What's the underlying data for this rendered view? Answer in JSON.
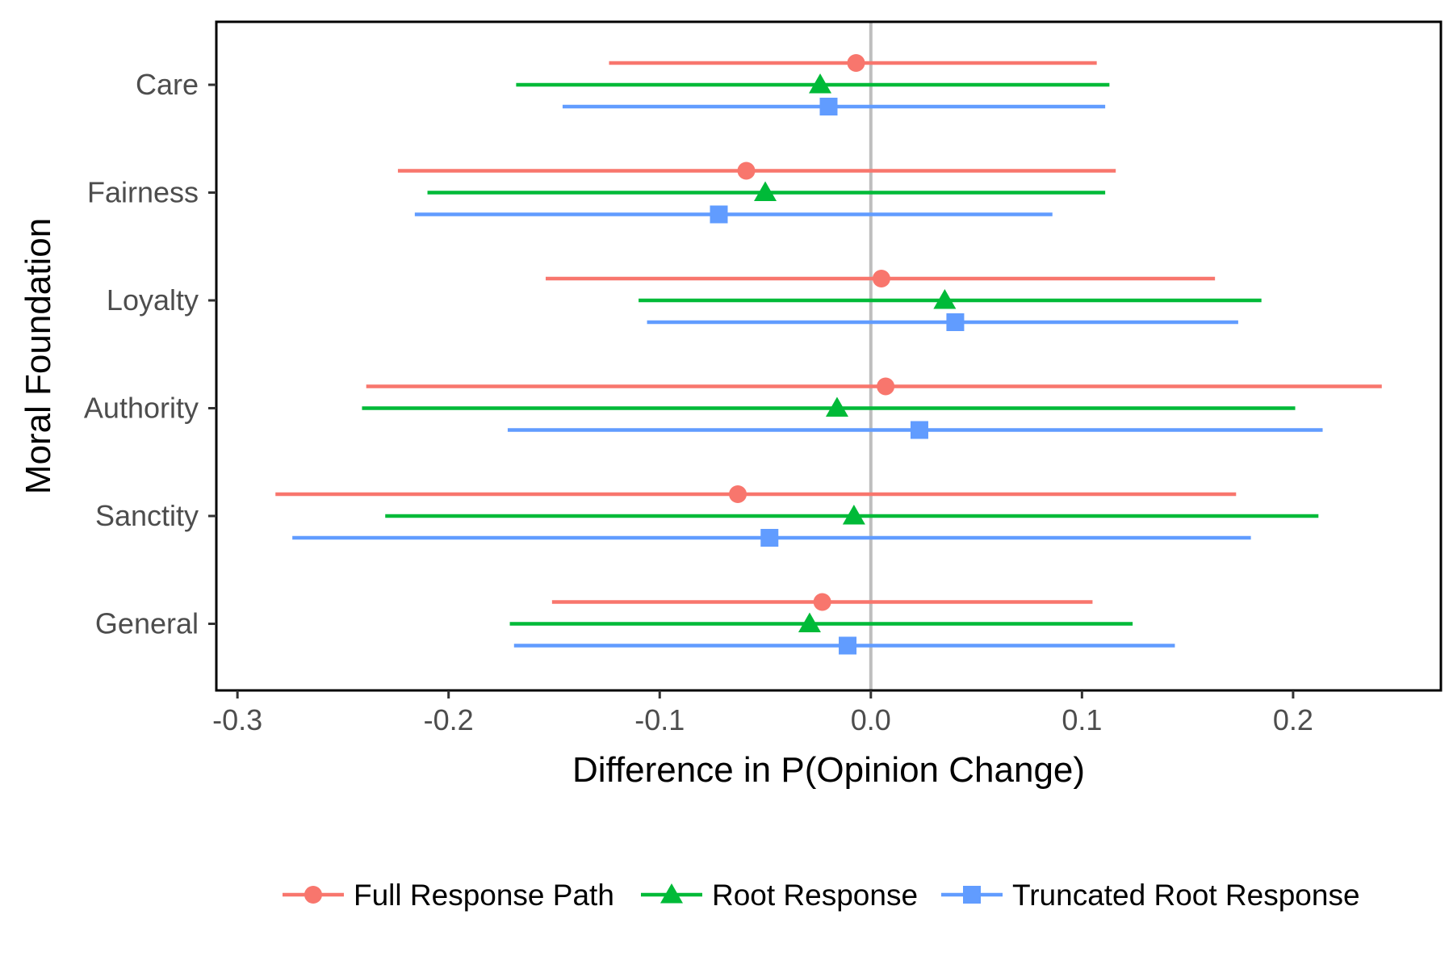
{
  "chart_data": {
    "type": "errorbar",
    "title": "",
    "xlabel": "Difference in P(Opinion Change)",
    "ylabel": "Moral Foundation",
    "xlim": [
      -0.31,
      0.27
    ],
    "x_ticks": [
      -0.3,
      -0.2,
      -0.1,
      0.0,
      0.1,
      0.2
    ],
    "x_tick_labels": [
      "-0.3",
      "-0.2",
      "-0.1",
      "0.0",
      "0.1",
      "0.2"
    ],
    "categories": [
      "Care",
      "Fairness",
      "Loyalty",
      "Authority",
      "Sanctity",
      "General"
    ],
    "reference_line": 0.0,
    "grid": false,
    "legend_position": "bottom",
    "series": [
      {
        "name": "Full Response Path",
        "color": "#F8766D",
        "marker": "circle",
        "estimates": [
          -0.007,
          -0.059,
          0.005,
          0.007,
          -0.063,
          -0.023
        ],
        "lower": [
          -0.124,
          -0.224,
          -0.154,
          -0.239,
          -0.282,
          -0.151
        ],
        "upper": [
          0.107,
          0.116,
          0.163,
          0.242,
          0.173,
          0.105
        ]
      },
      {
        "name": "Root Response",
        "color": "#00BA38",
        "marker": "triangle",
        "estimates": [
          -0.024,
          -0.05,
          0.035,
          -0.016,
          -0.008,
          -0.029
        ],
        "lower": [
          -0.168,
          -0.21,
          -0.11,
          -0.241,
          -0.23,
          -0.171
        ],
        "upper": [
          0.113,
          0.111,
          0.185,
          0.201,
          0.212,
          0.124
        ]
      },
      {
        "name": "Truncated Root Response",
        "color": "#619CFF",
        "marker": "square",
        "estimates": [
          -0.02,
          -0.072,
          0.04,
          0.023,
          -0.048,
          -0.011
        ],
        "lower": [
          -0.146,
          -0.216,
          -0.106,
          -0.172,
          -0.274,
          -0.169
        ],
        "upper": [
          0.111,
          0.086,
          0.174,
          0.214,
          0.18,
          0.144
        ]
      }
    ]
  }
}
